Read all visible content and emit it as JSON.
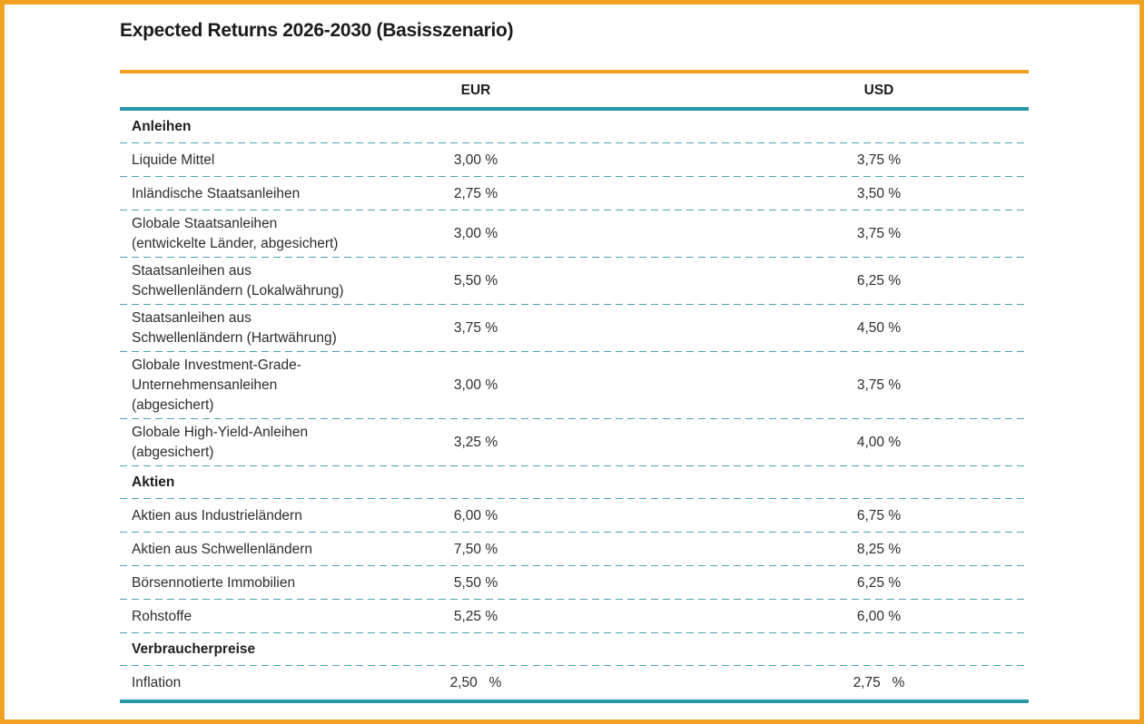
{
  "title": "Expected Returns 2026-2030 (Basisszenario)",
  "colors": {
    "accent_orange": "#F0A122",
    "accent_teal_solid": "#2897A8",
    "accent_teal_dashed": "#4AA4B2",
    "text": "#2d2d2d"
  },
  "chart_data": {
    "type": "table",
    "title": "Expected Returns 2026-2030 (Basisszenario)",
    "columns": [
      "EUR",
      "USD"
    ],
    "value_unit": "percent",
    "rows": [
      {
        "type": "section",
        "label": "Anleihen"
      },
      {
        "type": "row",
        "label": "Liquide Mittel",
        "eur": "3,00 %",
        "usd": "3,75 %",
        "eur_value": 3.0,
        "usd_value": 3.75
      },
      {
        "type": "row",
        "label": "Inländische Staatsanleihen",
        "eur": "2,75 %",
        "usd": "3,50 %",
        "eur_value": 2.75,
        "usd_value": 3.5
      },
      {
        "type": "row",
        "label": "Globale Staatsanleihen\n(entwickelte Länder, abgesichert)",
        "eur": "3,00 %",
        "usd": "3,75 %",
        "eur_value": 3.0,
        "usd_value": 3.75
      },
      {
        "type": "row",
        "label": "Staatsanleihen aus\nSchwellenländern (Lokalwährung)",
        "eur": "5,50 %",
        "usd": "6,25 %",
        "eur_value": 5.5,
        "usd_value": 6.25
      },
      {
        "type": "row",
        "label": "Staatsanleihen aus\nSchwellenländern (Hartwährung)",
        "eur": "3,75 %",
        "usd": "4,50 %",
        "eur_value": 3.75,
        "usd_value": 4.5
      },
      {
        "type": "row",
        "label": "Globale Investment-Grade-\nUnternehmensanleihen\n(abgesichert)",
        "eur": "3,00 %",
        "usd": "3,75 %",
        "eur_value": 3.0,
        "usd_value": 3.75
      },
      {
        "type": "row",
        "label": "Globale High-Yield-Anleihen\n(abgesichert)",
        "eur": "3,25 %",
        "usd": "4,00 %",
        "eur_value": 3.25,
        "usd_value": 4.0
      },
      {
        "type": "section",
        "label": "Aktien"
      },
      {
        "type": "row",
        "label": "Aktien aus Industrieländern",
        "eur": "6,00 %",
        "usd": "6,75 %",
        "eur_value": 6.0,
        "usd_value": 6.75
      },
      {
        "type": "row",
        "label": "Aktien aus Schwellenländern",
        "eur": "7,50 %",
        "usd": "8,25 %",
        "eur_value": 7.5,
        "usd_value": 8.25
      },
      {
        "type": "row",
        "label": "Börsennotierte Immobilien",
        "eur": "5,50 %",
        "usd": "6,25 %",
        "eur_value": 5.5,
        "usd_value": 6.25
      },
      {
        "type": "row",
        "label": "Rohstoffe",
        "eur": "5,25 %",
        "usd": "6,00 %",
        "eur_value": 5.25,
        "usd_value": 6.0
      },
      {
        "type": "section",
        "label": "Verbraucherpreise"
      },
      {
        "type": "row",
        "label": "Inflation",
        "eur": "2,50   %",
        "usd": "2,75   %",
        "eur_value": 2.5,
        "usd_value": 2.75
      }
    ]
  }
}
